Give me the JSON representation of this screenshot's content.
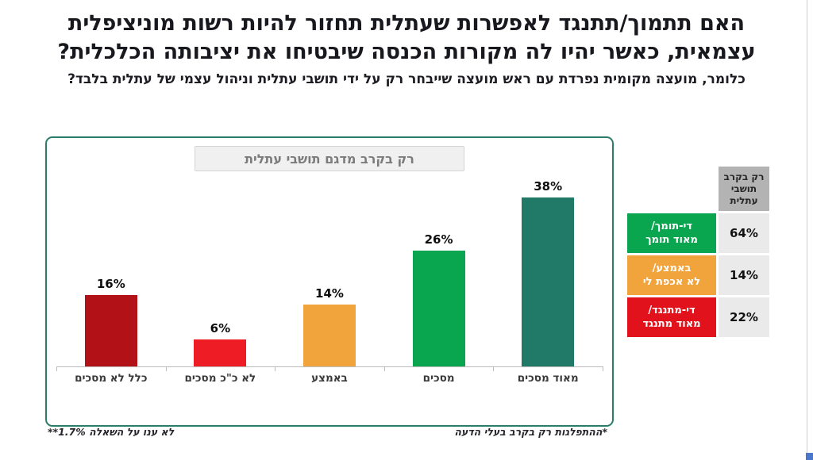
{
  "slide": {
    "title_line1": "האם תתמוך/תתנגד לאפשרות שעתלית תחזור להיות רשות מוניציפלית",
    "title_line2": "עצמאית, כאשר יהיו לה מקורות הכנסה שיבטיחו את יציבותה הכלכלית?",
    "subtitle": "כלומר, מועצה מקומית נפרדת עם ראש מועצה שייבחר רק על ידי תושבי עתלית וניהול עצמי של עתלית בלבד?",
    "footnote_left": "**1.7% לא ענו על השאלה",
    "footnote_right": "*ההתפלגות רק בקרב בעלי הדעה"
  },
  "chart_data": {
    "type": "bar",
    "title": "רק בקרב מדגם תושבי עתלית",
    "categories": [
      "כלל לא מסכים",
      "לא כ\"כ מסכים",
      "באמצע",
      "מסכים",
      "מאוד מסכים"
    ],
    "values": [
      16,
      6,
      14,
      26,
      38
    ],
    "value_labels": [
      "16%",
      "6%",
      "14%",
      "26%",
      "38%"
    ],
    "unit": "%",
    "ylim": [
      0,
      40
    ],
    "grid": false,
    "legend": "none",
    "bar_colors": [
      "#b21118",
      "#ee1c24",
      "#f2a43c",
      "#0aa64f",
      "#217a68"
    ]
  },
  "summary_table": {
    "header": "רק בקרב\nתושבי\nעתלית",
    "rows": [
      {
        "label": "די-תומך/\nמאוד תומך",
        "value": "64%",
        "color": "#0aa64f"
      },
      {
        "label": "באמצע/\nלא אכפת לי",
        "value": "14%",
        "color": "#f2a43c"
      },
      {
        "label": "די-מתנגד/\nמאוד מתנגד",
        "value": "22%",
        "color": "#e1121b"
      }
    ]
  },
  "colors": {
    "panel_border": "#2b7d6a",
    "axis": "#bcbcbc",
    "header_gray": "#b3b3b3",
    "value_cell_gray": "#eaeaea"
  }
}
